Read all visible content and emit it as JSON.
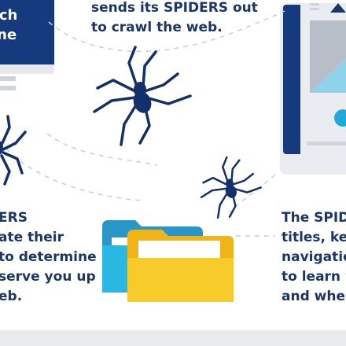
{
  "top_center": {
    "text": "sends its SPIDERS out\nto crawl the web."
  },
  "left_monitor": {
    "text": "rch\nine"
  },
  "left_text": {
    "text": "ERS\nate their\nto determine\n serve you up\neb."
  },
  "right_text": {
    "text": "The SPIDE\ntitles, key\nnavigation\nto learn w\nand where"
  },
  "icons": {
    "spider_large": "spider-icon",
    "spider_small": "spider-icon",
    "spider_left": "spider-icon",
    "folder_teal": "folder-icon",
    "folder_yellow": "folder-icon",
    "hamburger": "menu-icon",
    "logo": "logo-icon"
  },
  "colors": {
    "navy": "#163a7e",
    "text": "#1b3668",
    "spider": "#14306b",
    "teal": "#2896c8",
    "yellow": "#f4c520",
    "light": "#e9ecf0",
    "accent": "#23a9d8",
    "graydashed": "#c9ced6"
  }
}
